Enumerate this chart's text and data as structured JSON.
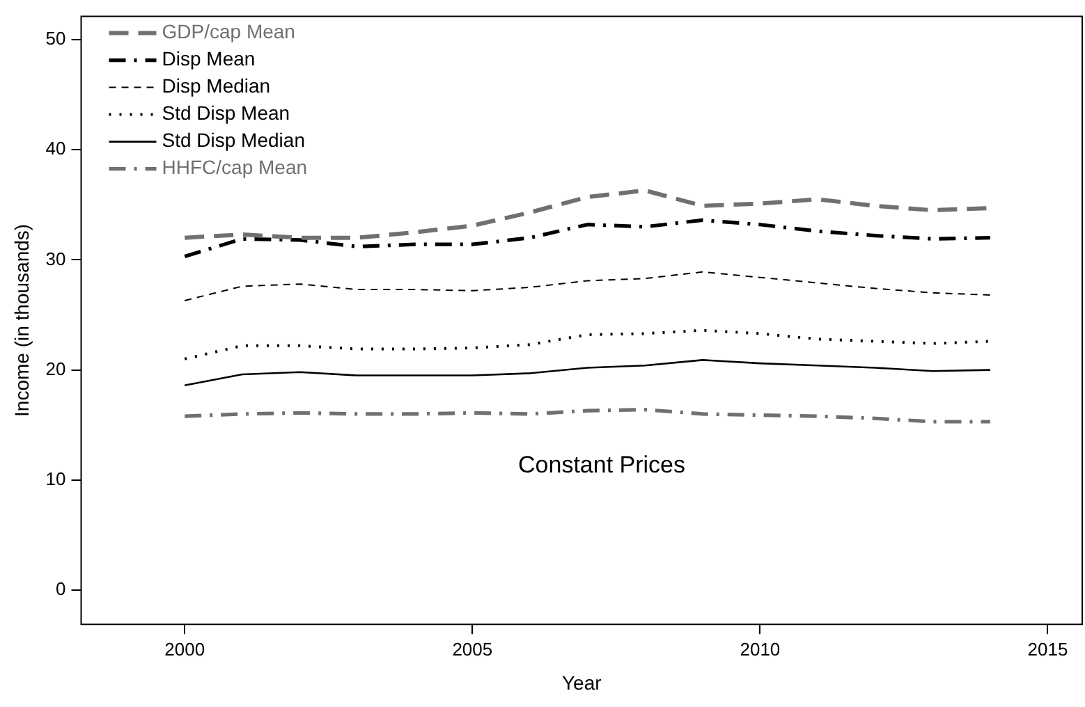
{
  "chart_data": {
    "type": "line",
    "xlabel": "Year",
    "ylabel": "Income (in thousands)",
    "x": [
      2000,
      2001,
      2002,
      2003,
      2004,
      2005,
      2006,
      2007,
      2008,
      2009,
      2010,
      2011,
      2012,
      2013,
      2014
    ],
    "xlim": [
      1998.2,
      2015.6
    ],
    "xticks": [
      2000,
      2005,
      2010,
      2015
    ],
    "ylim": [
      -3.1,
      52.1
    ],
    "yticks": [
      0,
      10,
      20,
      30,
      40,
      50
    ],
    "grid": false,
    "legend": "top left",
    "marker": "none",
    "annotations": [
      "Constant Prices"
    ],
    "series": [
      {
        "name": "GDP/cap Mean",
        "color": "#707070",
        "line_style": "longdash",
        "values": [
          32.0,
          32.3,
          32.0,
          32.0,
          32.5,
          33.1,
          34.3,
          35.7,
          36.3,
          34.9,
          35.1,
          35.5,
          34.9,
          34.5,
          34.7
        ]
      },
      {
        "name": "Disp Mean",
        "color": "#000000",
        "line_style": "dashdot",
        "values": [
          30.3,
          31.9,
          31.8,
          31.2,
          31.4,
          31.4,
          32.0,
          33.2,
          33.0,
          33.6,
          33.2,
          32.6,
          32.2,
          31.9,
          32.0
        ]
      },
      {
        "name": "Disp Median",
        "color": "#000000",
        "line_style": "dashed",
        "values": [
          26.3,
          27.6,
          27.8,
          27.3,
          27.3,
          27.2,
          27.5,
          28.1,
          28.3,
          28.9,
          28.4,
          27.9,
          27.4,
          27.0,
          26.8
        ]
      },
      {
        "name": "Std Disp Mean",
        "color": "#000000",
        "line_style": "dotted",
        "values": [
          21.0,
          22.2,
          22.2,
          21.9,
          21.9,
          22.0,
          22.3,
          23.2,
          23.3,
          23.6,
          23.3,
          22.8,
          22.6,
          22.4,
          22.6
        ]
      },
      {
        "name": "Std Disp Median",
        "color": "#000000",
        "line_style": "solid",
        "values": [
          18.6,
          19.6,
          19.8,
          19.5,
          19.5,
          19.5,
          19.7,
          20.2,
          20.4,
          20.9,
          20.6,
          20.4,
          20.2,
          19.9,
          20.0
        ]
      },
      {
        "name": "HHFC/cap Mean",
        "color": "#707070",
        "line_style": "dashdot",
        "values": [
          15.8,
          16.0,
          16.1,
          16.0,
          16.0,
          16.1,
          16.0,
          16.3,
          16.4,
          16.0,
          15.9,
          15.8,
          15.6,
          15.3,
          15.3
        ]
      }
    ]
  }
}
